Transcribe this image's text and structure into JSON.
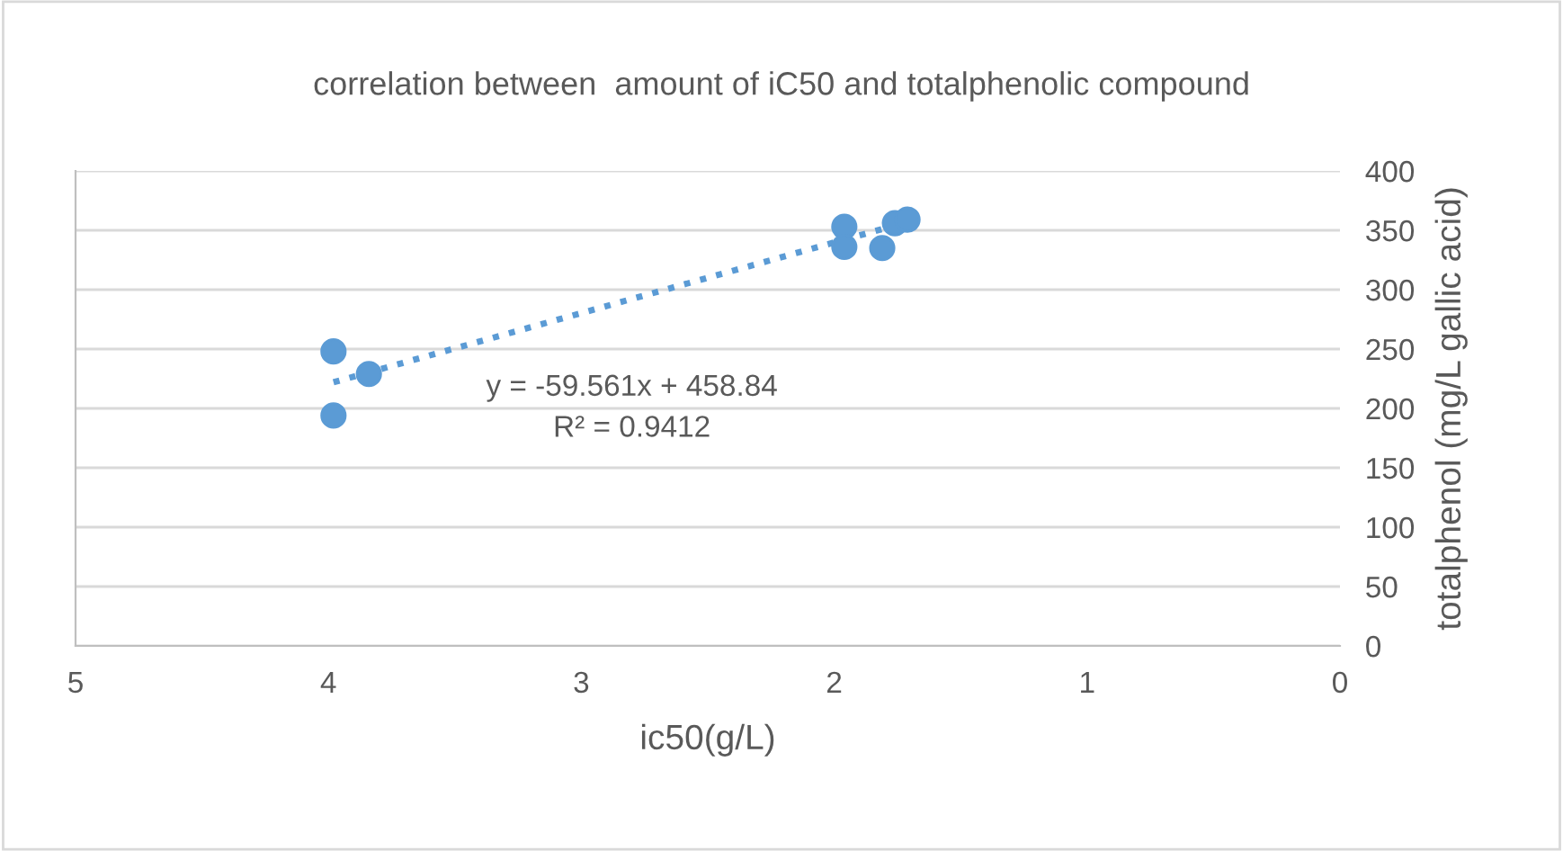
{
  "chart_data": {
    "type": "scatter",
    "title": "correlation between  amount of iC50 and totalphenolic compound",
    "xlabel": "ic50(g/L)",
    "ylabel": "totalphenol (mg/L gallic acid)",
    "series": [
      {
        "color": "#5b9bd5",
        "marker": "circle",
        "x": [
          3.98,
          3.98,
          3.84,
          1.96,
          1.96,
          1.81,
          1.76,
          1.71
        ],
        "values": [
          248,
          194,
          229,
          353,
          336,
          335,
          356,
          359
        ]
      },
      {
        "type": "line",
        "color": "#5b9bd5",
        "line_style": "dotted",
        "marker": "none",
        "x": [
          3.98,
          1.71
        ],
        "values": [
          222,
          357
        ]
      }
    ],
    "annotations": [
      "y = -59.561x + 458.84\nR² = 0.9412"
    ],
    "xlim": [
      5,
      0
    ],
    "xticks": [
      5,
      4,
      3,
      2,
      1,
      0
    ],
    "ylim": [
      0,
      400
    ],
    "yticks": [
      0,
      50,
      100,
      150,
      200,
      250,
      300,
      350,
      400
    ],
    "grid": "y",
    "legend": false
  }
}
